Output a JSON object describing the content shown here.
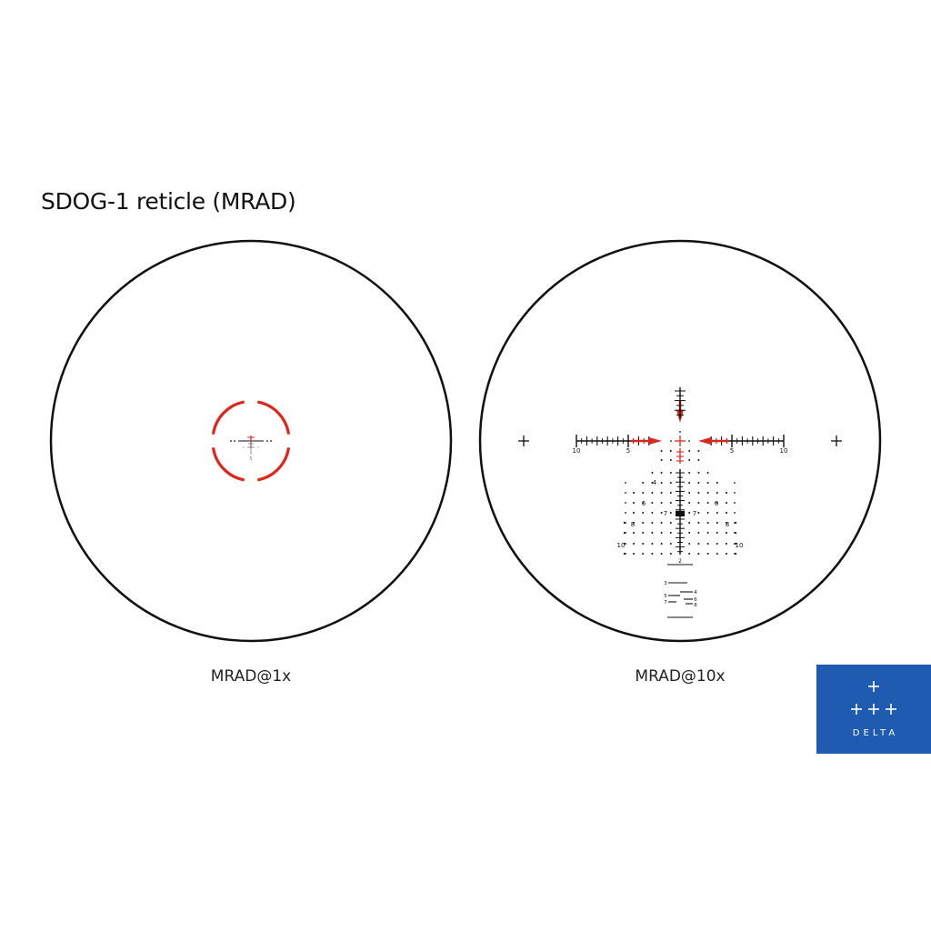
{
  "title": "SDOG-1 reticle (MRAD)",
  "views": [
    {
      "caption": "MRAD@1x"
    },
    {
      "caption": "MRAD@10x"
    }
  ],
  "reticle": {
    "horizontal_labels": [
      "10",
      "5",
      "5",
      "10"
    ],
    "holdover_labels": [
      "4",
      "6",
      "7",
      "8",
      "10"
    ],
    "rangefinder_top_label": "2",
    "rangefinder_left_labels": [
      "3",
      "5",
      "7"
    ],
    "rangefinder_right_labels": [
      "4",
      "6",
      "8"
    ],
    "small_center_label": "5"
  },
  "logo": {
    "text": "DELTA"
  },
  "colors": {
    "red": "#e0251b",
    "ink": "#111111",
    "logo_bg": "#1f5bb0"
  }
}
